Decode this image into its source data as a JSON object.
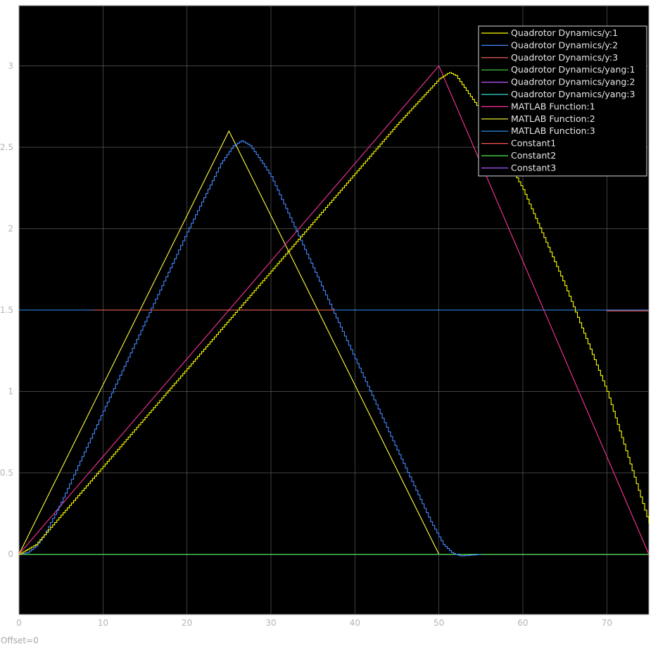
{
  "footer": {
    "offset_label": "Offset=0"
  },
  "chart_data": {
    "type": "line",
    "title": "",
    "xlabel": "",
    "ylabel": "",
    "xlim": [
      0,
      75
    ],
    "ylim": [
      -0.37,
      3.37
    ],
    "xticks": [
      0,
      10,
      20,
      30,
      40,
      50,
      60,
      70
    ],
    "yticks": [
      0,
      0.5,
      1,
      1.5,
      2,
      2.5,
      3
    ],
    "ytick_labels": [
      "0",
      "0.5",
      "1",
      "1.5",
      "2",
      "2.5",
      "3"
    ],
    "grid": true,
    "legend_position": "top-right",
    "background": "#000000",
    "series": [
      {
        "name": "Quadrotor Dynamics/y:1",
        "color": "#ffff00",
        "step": true,
        "x": [
          0,
          2,
          5,
          10,
          20,
          30,
          40,
          45,
          50,
          51.2,
          52,
          55,
          60,
          65,
          70,
          75
        ],
        "y": [
          0,
          0.06,
          0.24,
          0.54,
          1.14,
          1.74,
          2.34,
          2.64,
          2.92,
          2.96,
          2.94,
          2.72,
          2.24,
          1.65,
          1.0,
          0.19
        ]
      },
      {
        "name": "Quadrotor Dynamics/y:2",
        "color": "#4488ff",
        "step": true,
        "x": [
          0,
          1,
          2,
          3,
          5,
          10,
          20,
          24,
          25.5,
          26.5,
          27.5,
          29,
          30,
          35,
          40,
          45,
          49,
          50.5,
          51.5,
          52.5,
          54,
          55
        ],
        "y": [
          0,
          0.01,
          0.05,
          0.12,
          0.32,
          0.88,
          1.98,
          2.4,
          2.51,
          2.54,
          2.51,
          2.4,
          2.32,
          1.76,
          1.2,
          0.64,
          0.2,
          0.06,
          0.01,
          -0.01,
          -0.005,
          0
        ]
      },
      {
        "name": "Quadrotor Dynamics/y:3",
        "color": "#ff6a55",
        "x": [
          8.8,
          37.7
        ],
        "y": [
          1.5,
          1.5
        ]
      },
      {
        "name": "Quadrotor Dynamics/yang:1",
        "color": "#44dd44",
        "x": [
          0,
          75
        ],
        "y": [
          0,
          0
        ]
      },
      {
        "name": "Quadrotor Dynamics/yang:2",
        "color": "#bb55ff",
        "x": [
          0,
          75
        ],
        "y": [
          0,
          0
        ]
      },
      {
        "name": "Quadrotor Dynamics/yang:3",
        "color": "#33ddcc",
        "x": [
          0,
          75
        ],
        "y": [
          0,
          0
        ]
      },
      {
        "name": "MATLAB Function:1",
        "color": "#ff3399",
        "x": [
          0,
          50,
          75
        ],
        "y": [
          0,
          3,
          0
        ]
      },
      {
        "name": "MATLAB Function:2",
        "color": "#ffff44",
        "x": [
          0,
          25,
          50,
          75
        ],
        "y": [
          0,
          2.6,
          0,
          0
        ]
      },
      {
        "name": "MATLAB Function:3",
        "color": "#3399ff",
        "x": [
          0,
          75
        ],
        "y": [
          1.5,
          1.5
        ]
      },
      {
        "name": "Constant1",
        "color": "#ff5555",
        "x": [
          70,
          75
        ],
        "y": [
          1.495,
          1.495
        ]
      },
      {
        "name": "Constant2",
        "color": "#55ee55",
        "x": [
          0,
          75
        ],
        "y": [
          0,
          0
        ]
      },
      {
        "name": "Constant3",
        "color": "#aa55ff",
        "x": [
          0,
          75
        ],
        "y": [
          0,
          0
        ]
      }
    ]
  }
}
